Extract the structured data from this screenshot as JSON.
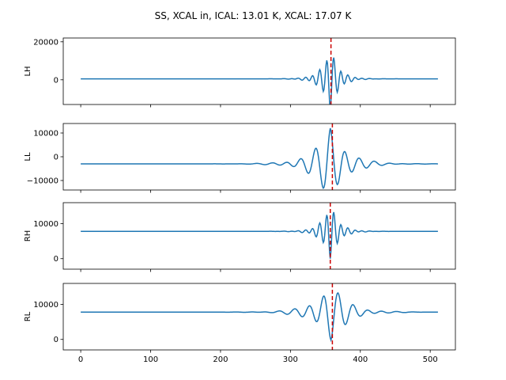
{
  "title": "SS, XCAL in, ICAL: 13.01 K, XCAL: 17.07 K",
  "chart_data": [
    {
      "type": "line",
      "ylabel": "LH",
      "xlim": [
        -25,
        536
      ],
      "ylim": [
        -13000,
        22000
      ],
      "yticks": [
        0,
        20000
      ],
      "xticks": [
        0,
        100,
        200,
        300,
        400,
        500
      ],
      "show_xticklabels": false,
      "line_color": "#1f77b4",
      "marker_color": "#cc0000",
      "marker_x": 358,
      "signal": {
        "n": 512,
        "center": 357,
        "baseline": 500,
        "amplitude": -16000,
        "omega": 0.62,
        "decay": 0.085,
        "ripple_amplitude": 900,
        "ripple_omega": 0.35,
        "ripple_decay": 0.04
      },
      "series": [
        {
          "values_note": "",
          "x_range": [
            0,
            511
          ]
        }
      ]
    },
    {
      "type": "line",
      "ylabel": "LL",
      "xlim": [
        -25,
        536
      ],
      "ylim": [
        -14000,
        14000
      ],
      "yticks": [
        -10000,
        0,
        10000
      ],
      "xticks": [
        0,
        100,
        200,
        300,
        400,
        500
      ],
      "show_xticklabels": false,
      "line_color": "#1f77b4",
      "marker_color": "#cc0000",
      "marker_x": 360,
      "signal": {
        "n": 512,
        "center": 357,
        "baseline": -3000,
        "amplitude": 15000,
        "omega": 0.3,
        "decay": 0.045,
        "ripple_amplitude": 1200,
        "ripple_omega": 0.22,
        "ripple_decay": 0.025
      },
      "series": [
        {
          "values_note": "",
          "x_range": [
            0,
            511
          ]
        }
      ]
    },
    {
      "type": "line",
      "ylabel": "RH",
      "xlim": [
        -25,
        536
      ],
      "ylim": [
        -3000,
        16000
      ],
      "yticks": [
        0,
        10000
      ],
      "xticks": [
        0,
        100,
        200,
        300,
        400,
        500
      ],
      "show_xticklabels": false,
      "line_color": "#1f77b4",
      "marker_color": "#cc0000",
      "marker_x": 357,
      "signal": {
        "n": 512,
        "center": 357,
        "baseline": 7800,
        "amplitude": -7800,
        "omega": 0.62,
        "decay": 0.085,
        "ripple_amplitude": 500,
        "ripple_omega": 0.35,
        "ripple_decay": 0.04
      },
      "series": [
        {
          "values_note": "",
          "x_range": [
            0,
            511
          ]
        }
      ]
    },
    {
      "type": "line",
      "ylabel": "RL",
      "xlim": [
        -25,
        536
      ],
      "ylim": [
        -3000,
        16000
      ],
      "yticks": [
        0,
        10000
      ],
      "xticks": [
        0,
        100,
        200,
        300,
        400,
        500
      ],
      "show_xticklabels": true,
      "line_color": "#1f77b4",
      "marker_color": "#cc0000",
      "marker_x": 360,
      "signal": {
        "n": 512,
        "center": 358,
        "baseline": 7800,
        "amplitude": -8000,
        "omega": 0.3,
        "decay": 0.045,
        "ripple_amplitude": 700,
        "ripple_omega": 0.22,
        "ripple_decay": 0.025
      },
      "series": [
        {
          "values_note": "",
          "x_range": [
            0,
            511
          ]
        }
      ]
    }
  ]
}
